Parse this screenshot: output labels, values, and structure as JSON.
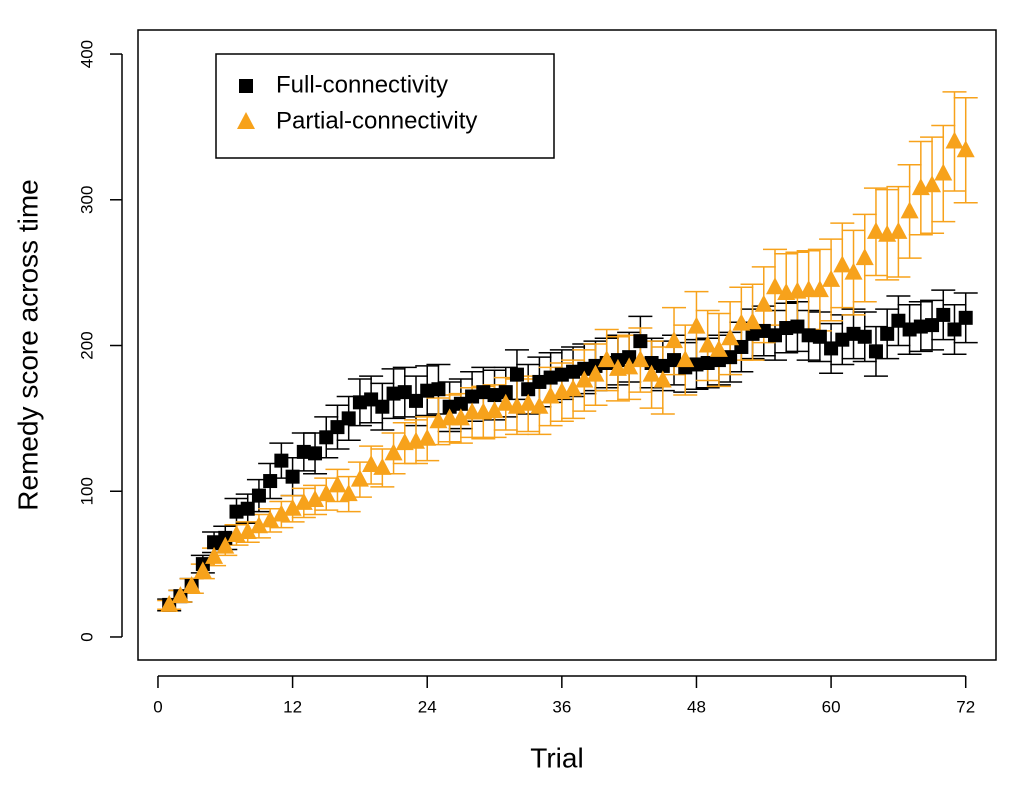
{
  "chart_data": {
    "type": "scatter",
    "x_label": "Trial",
    "y_label": "Remedy score across time",
    "x": [
      1,
      2,
      3,
      4,
      5,
      6,
      7,
      8,
      9,
      10,
      11,
      12,
      13,
      14,
      15,
      16,
      17,
      18,
      19,
      20,
      21,
      22,
      23,
      24,
      25,
      26,
      27,
      28,
      29,
      30,
      31,
      32,
      33,
      34,
      35,
      36,
      37,
      38,
      39,
      40,
      41,
      42,
      43,
      44,
      45,
      46,
      47,
      48,
      49,
      50,
      51,
      52,
      53,
      54,
      55,
      56,
      57,
      58,
      59,
      60,
      61,
      62,
      63,
      64,
      65,
      66,
      67,
      68,
      69,
      70,
      71,
      72
    ],
    "series": [
      {
        "name": "Full-connectivity",
        "color": "#000000",
        "marker": "square",
        "values": [
          22,
          28,
          35,
          50,
          65,
          68,
          86,
          88,
          97,
          107,
          121,
          110,
          127,
          126,
          137,
          144,
          150,
          161,
          163,
          158,
          167,
          168,
          162,
          169,
          170,
          158,
          160,
          165,
          168,
          166,
          168,
          180,
          170,
          175,
          178,
          180,
          182,
          184,
          186,
          188,
          190,
          192,
          203,
          188,
          186,
          190,
          185,
          187,
          188,
          190,
          192,
          199,
          208,
          210,
          207,
          212,
          213,
          207,
          206,
          198,
          204,
          208,
          206,
          196,
          208,
          217,
          211,
          213,
          214,
          221,
          211,
          219
        ],
        "errors": [
          4,
          4,
          5,
          6,
          7,
          8,
          9,
          10,
          11,
          12,
          12,
          13,
          13,
          14,
          14,
          15,
          15,
          16,
          16,
          16,
          17,
          17,
          17,
          17,
          17,
          17,
          17,
          17,
          17,
          17,
          17,
          17,
          17,
          17,
          17,
          17,
          17,
          17,
          17,
          17,
          17,
          17,
          17,
          17,
          17,
          17,
          17,
          17,
          17,
          17,
          17,
          17,
          17,
          17,
          17,
          17,
          17,
          17,
          17,
          17,
          17,
          17,
          17,
          17,
          17,
          17,
          17,
          17,
          17,
          17,
          17,
          17
        ]
      },
      {
        "name": "Partial-connectivity",
        "color": "#f7a21b",
        "marker": "triangle",
        "values": [
          22,
          28,
          35,
          45,
          55,
          62,
          70,
          72,
          76,
          80,
          84,
          88,
          92,
          94,
          98,
          104,
          98,
          108,
          118,
          116,
          126,
          133,
          134,
          136,
          148,
          150,
          150,
          154,
          154,
          155,
          160,
          158,
          160,
          158,
          165,
          168,
          170,
          176,
          180,
          190,
          184,
          185,
          190,
          180,
          176,
          203,
          190,
          213,
          200,
          197,
          205,
          215,
          216,
          228,
          240,
          236,
          237,
          238,
          238,
          245,
          255,
          250,
          260,
          278,
          276,
          278,
          292,
          308,
          310,
          318,
          340,
          334
        ],
        "errors": [
          3,
          4,
          5,
          5,
          6,
          6,
          7,
          7,
          8,
          8,
          9,
          9,
          10,
          10,
          11,
          11,
          12,
          12,
          13,
          13,
          14,
          14,
          15,
          15,
          16,
          16,
          17,
          17,
          18,
          18,
          18,
          19,
          19,
          19,
          20,
          20,
          20,
          21,
          21,
          21,
          22,
          22,
          22,
          23,
          23,
          23,
          24,
          24,
          24,
          25,
          25,
          25,
          26,
          26,
          26,
          27,
          27,
          27,
          28,
          28,
          29,
          29,
          30,
          30,
          31,
          31,
          32,
          32,
          33,
          33,
          34,
          36
        ]
      }
    ],
    "xlim": [
      -1.78,
      74.7
    ],
    "ylim": [
      -15.8,
      416.5
    ],
    "xticks": [
      0,
      12,
      24,
      36,
      48,
      60,
      72
    ],
    "yticks": [
      0,
      100,
      200,
      300,
      400
    ],
    "legend": "top-left"
  }
}
